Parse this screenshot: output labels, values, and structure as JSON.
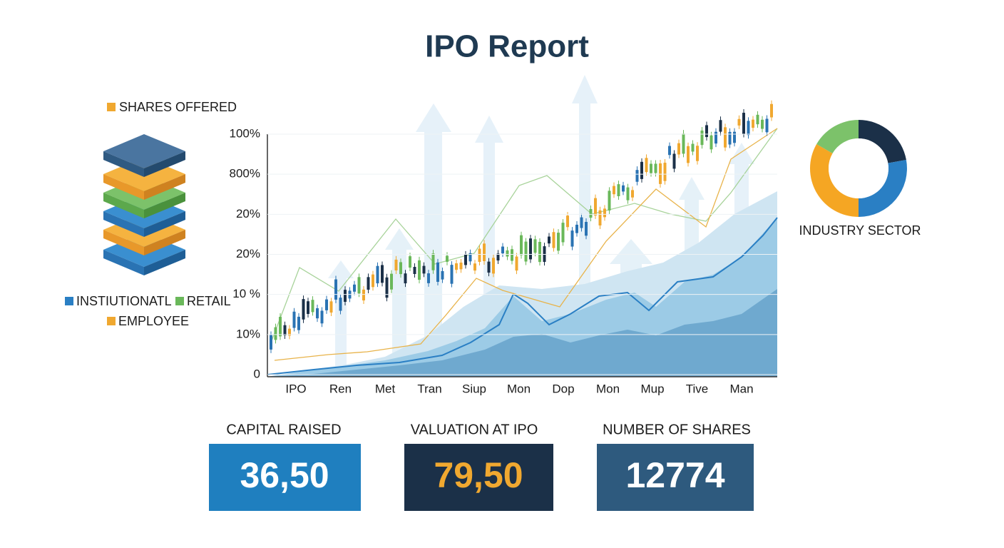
{
  "header": {
    "title": "IPO Report"
  },
  "shares_offered": {
    "title": "SHARES OFFERED",
    "legend": [
      "INSTIUTIONATL",
      "RETAIL",
      "EMPLOYEE"
    ]
  },
  "main_chart": {
    "y_axis_labels": [
      "100%",
      "800%",
      "20%",
      "20%",
      "10 %",
      "10%",
      "0"
    ],
    "x_axis_labels": [
      "IPO",
      "Ren",
      "Met",
      "Tran",
      "Siup",
      "Mon",
      "Dop",
      "Mon",
      "Mup",
      "Tive",
      "Man"
    ]
  },
  "industry_sector": {
    "title": "INDUSTRY SECTOR"
  },
  "kpis": [
    {
      "label": "CAPITAL RAISED",
      "value": "36,50"
    },
    {
      "label": "VALUATION AT IPO",
      "value": "79,50"
    },
    {
      "label": "NUMBER OF SHARES",
      "value": "12774"
    }
  ]
}
